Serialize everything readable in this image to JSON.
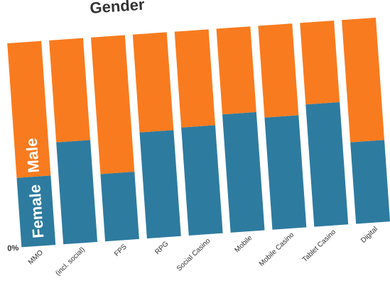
{
  "chart_data": {
    "type": "bar",
    "stacked": true,
    "title": "Gender",
    "categories": [
      "MMO",
      "(incl. social)",
      "FPS",
      "RPG",
      "Social Casino",
      "Mobile",
      "Mobile Casino",
      "Tablet Casino",
      "Digital"
    ],
    "series": [
      {
        "name": "Female",
        "color": "#2e7ba0",
        "values": [
          34,
          50,
          33,
          52,
          53,
          58,
          55,
          60,
          40
        ]
      },
      {
        "name": "Male",
        "color": "#f97b1f",
        "values": [
          66,
          50,
          67,
          48,
          47,
          42,
          45,
          40,
          60
        ]
      }
    ],
    "yticks": [
      "0%"
    ],
    "ylim": [
      0,
      100
    ],
    "grid": false,
    "legend": "inside-bars"
  }
}
